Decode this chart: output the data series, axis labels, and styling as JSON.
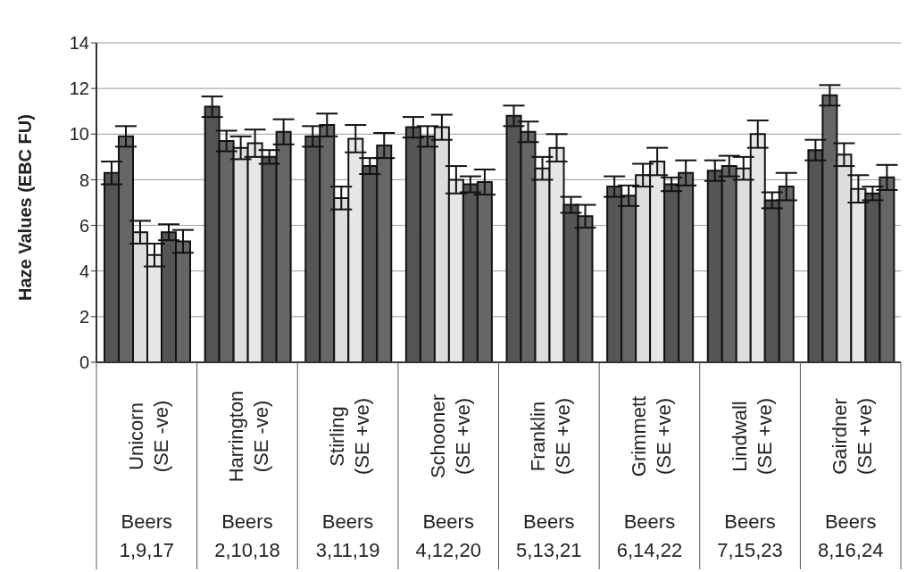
{
  "chart_data": {
    "type": "bar",
    "ylabel": "Haze Values (EBC FU)",
    "categories": [
      "Unicorn\n(SE -ve)\nBeers\n1,9,17",
      "Harrington\n(SE -ve)\nBeers\n2,10,18",
      "Stirling\n(SE +ve)\nBeers\n3,11,19",
      "Schooner\n(SE +ve)\nBeers\n4,12,20",
      "Franklin\n(SE +ve)\nBeers\n5,13,21",
      "Grimmett\n(SE +ve)\nBeers\n6,14,22",
      "Lindwall\n(SE +ve)\nBeers\n7,15,23",
      "Gairdner\n(SE +ve)\nBeers\n8,16,24"
    ],
    "series": [
      {
        "color": "#555555",
        "values": [
          8.3,
          11.2,
          9.9,
          10.3,
          10.8,
          7.7,
          8.4,
          9.3
        ],
        "errors": [
          0.5,
          0.45,
          0.45,
          0.45,
          0.45,
          0.45,
          0.45,
          0.45
        ]
      },
      {
        "color": "#666666",
        "values": [
          9.9,
          9.7,
          10.4,
          9.9,
          10.1,
          7.3,
          8.6,
          11.7
        ],
        "errors": [
          0.45,
          0.45,
          0.5,
          0.45,
          0.45,
          0.45,
          0.45,
          0.45
        ]
      },
      {
        "color": "#dddddd",
        "values": [
          5.7,
          9.4,
          7.2,
          10.3,
          8.5,
          8.2,
          8.5,
          9.1
        ],
        "errors": [
          0.5,
          0.5,
          0.5,
          0.55,
          0.5,
          0.5,
          0.5,
          0.5
        ]
      },
      {
        "color": "#e6e6e6",
        "values": [
          4.7,
          9.6,
          9.8,
          8.0,
          9.4,
          8.8,
          10.0,
          7.6
        ],
        "errors": [
          0.5,
          0.6,
          0.6,
          0.6,
          0.6,
          0.6,
          0.6,
          0.6
        ]
      },
      {
        "color": "#555555",
        "values": [
          5.7,
          9.0,
          8.6,
          7.8,
          6.9,
          7.8,
          7.1,
          7.4
        ],
        "errors": [
          0.35,
          0.3,
          0.35,
          0.35,
          0.35,
          0.3,
          0.35,
          0.3
        ]
      },
      {
        "color": "#666666",
        "values": [
          5.3,
          10.1,
          9.5,
          7.9,
          6.4,
          8.3,
          7.7,
          8.1
        ],
        "errors": [
          0.5,
          0.55,
          0.55,
          0.55,
          0.5,
          0.55,
          0.6,
          0.55
        ]
      }
    ],
    "ylim": [
      0,
      14
    ],
    "yticks": [
      0,
      2,
      4,
      6,
      8,
      10,
      12,
      14
    ],
    "grid": "y",
    "legend": false
  }
}
